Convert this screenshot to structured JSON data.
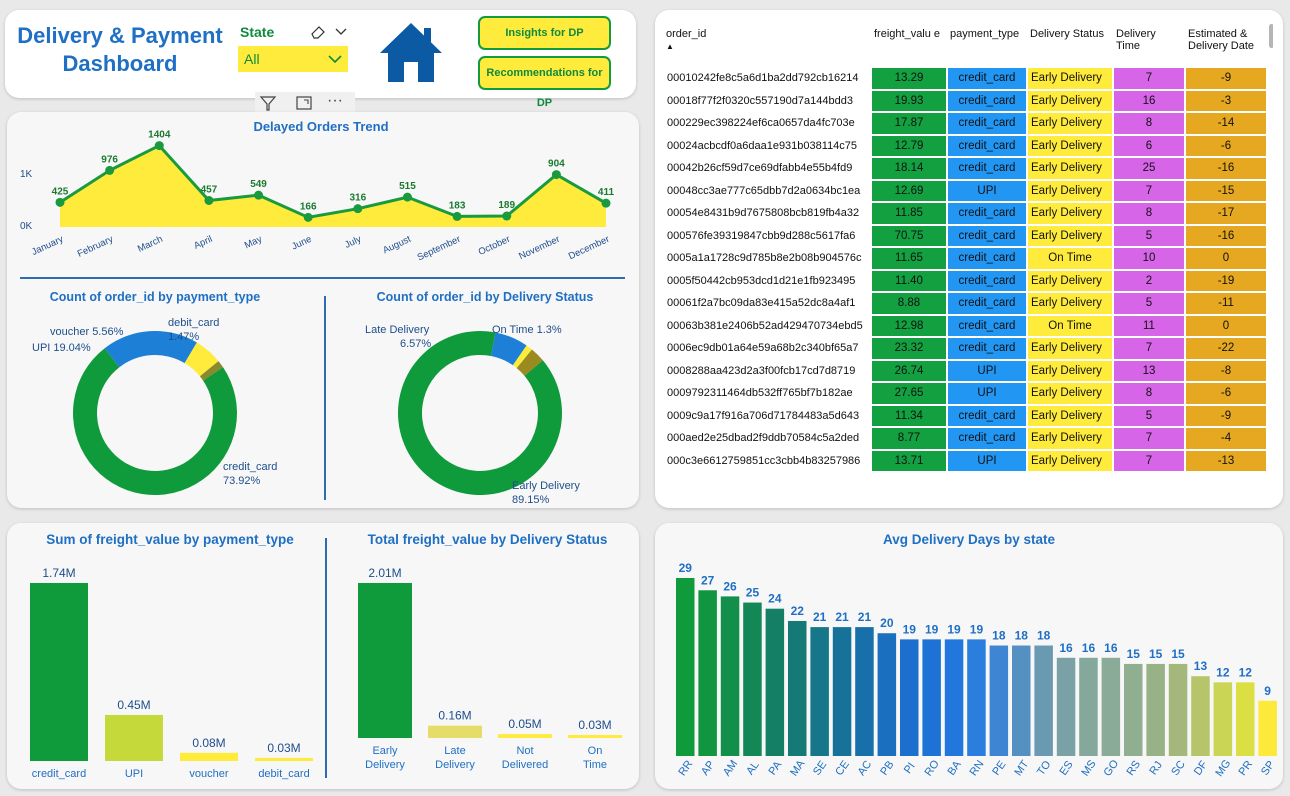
{
  "header": {
    "title_line1": "Delivery & Payment",
    "title_line2": "Dashboard",
    "state_label": "State",
    "state_value": "All",
    "btn_insights": "Insights for DP",
    "btn_recommend": "Recommendations for DP",
    "more_label": "···"
  },
  "trend": {
    "title": "Delayed Orders Trend",
    "y_ticks": [
      "1K",
      "0K"
    ]
  },
  "donut_payment": {
    "title": "Count of order_id by payment_type",
    "labels": {
      "voucher": "voucher 5.56%",
      "debit_line1": "debit_card",
      "debit_line2": "1.47%",
      "upi": "UPI 19.04%",
      "credit_line1": "credit_card",
      "credit_line2": "73.92%"
    }
  },
  "donut_status": {
    "title": "Count of order_id by Delivery Status",
    "labels": {
      "late_line1": "Late Delivery",
      "late_line2": "6.57%",
      "ontime": "On Time 1.3%",
      "early_line1": "Early Delivery",
      "early_line2": "89.15%"
    }
  },
  "table": {
    "headers": [
      "order_id",
      "freight_valu e",
      "payment_type",
      "Delivery Status",
      "Delivery Time",
      "Estimated & Delivery Date"
    ],
    "rows": [
      [
        "00010242fe8c5a6d1ba2dd792cb16214",
        "13.29",
        "credit_card",
        "Early Delivery",
        "7",
        "-9"
      ],
      [
        "00018f77f2f0320c557190d7a144bdd3",
        "19.93",
        "credit_card",
        "Early Delivery",
        "16",
        "-3"
      ],
      [
        "000229ec398224ef6ca0657da4fc703e",
        "17.87",
        "credit_card",
        "Early Delivery",
        "8",
        "-14"
      ],
      [
        "00024acbcdf0a6daa1e931b038114c75",
        "12.79",
        "credit_card",
        "Early Delivery",
        "6",
        "-6"
      ],
      [
        "00042b26cf59d7ce69dfabb4e55b4fd9",
        "18.14",
        "credit_card",
        "Early Delivery",
        "25",
        "-16"
      ],
      [
        "00048cc3ae777c65dbb7d2a0634bc1ea",
        "12.69",
        "UPI",
        "Early Delivery",
        "7",
        "-15"
      ],
      [
        "00054e8431b9d7675808bcb819fb4a32",
        "11.85",
        "credit_card",
        "Early Delivery",
        "8",
        "-17"
      ],
      [
        "000576fe39319847cbb9d288c5617fa6",
        "70.75",
        "credit_card",
        "Early Delivery",
        "5",
        "-16"
      ],
      [
        "0005a1a1728c9d785b8e2b08b904576c",
        "11.65",
        "credit_card",
        "On Time",
        "10",
        "0"
      ],
      [
        "0005f50442cb953dcd1d21e1fb923495",
        "11.40",
        "credit_card",
        "Early Delivery",
        "2",
        "-19"
      ],
      [
        "00061f2a7bc09da83e415a52dc8a4af1",
        "8.88",
        "credit_card",
        "Early Delivery",
        "5",
        "-11"
      ],
      [
        "00063b381e2406b52ad429470734ebd5",
        "12.98",
        "credit_card",
        "On Time",
        "11",
        "0"
      ],
      [
        "0006ec9db01a64e59a68b2c340bf65a7",
        "23.32",
        "credit_card",
        "Early Delivery",
        "7",
        "-22"
      ],
      [
        "0008288aa423d2a3f00fcb17cd7d8719",
        "26.74",
        "UPI",
        "Early Delivery",
        "13",
        "-8"
      ],
      [
        "0009792311464db532ff765bf7b182ae",
        "27.65",
        "UPI",
        "Early Delivery",
        "8",
        "-6"
      ],
      [
        "0009c9a17f916a706d71784483a5d643",
        "11.34",
        "credit_card",
        "Early Delivery",
        "5",
        "-9"
      ],
      [
        "000aed2e25dbad2f9ddb70584c5a2ded",
        "8.77",
        "credit_card",
        "Early Delivery",
        "7",
        "-4"
      ],
      [
        "000c3e6612759851cc3cbb4b83257986",
        "13.71",
        "UPI",
        "Early Delivery",
        "7",
        "-13"
      ]
    ]
  },
  "colors": {
    "green": "#0f9a3c",
    "blue": "#1e7fd6",
    "yellow": "#ffeb3b",
    "title_blue": "#1f6fc4",
    "lime": "#c6d93b",
    "magenta": "#d665e8",
    "orange": "#e6a820"
  },
  "chart_data": [
    {
      "type": "area",
      "title": "Delayed Orders Trend",
      "categories": [
        "January",
        "February",
        "March",
        "April",
        "May",
        "June",
        "July",
        "August",
        "September",
        "October",
        "November",
        "December"
      ],
      "values": [
        425,
        976,
        1404,
        457,
        549,
        166,
        316,
        515,
        183,
        189,
        904,
        411
      ],
      "value_labels": [
        "425",
        "976",
        "1404",
        "457",
        "549",
        "166",
        "316",
        "515",
        "183",
        "189",
        "904",
        "411"
      ],
      "ylim": [
        0,
        1500
      ]
    },
    {
      "type": "pie",
      "title": "Count of order_id by payment_type",
      "categories": [
        "credit_card",
        "UPI",
        "voucher",
        "debit_card"
      ],
      "values": [
        73.92,
        19.04,
        5.56,
        1.47
      ]
    },
    {
      "type": "pie",
      "title": "Count of order_id by Delivery Status",
      "categories": [
        "Early Delivery",
        "Late Delivery",
        "On Time",
        "Not Delivered"
      ],
      "values": [
        89.15,
        6.57,
        1.3,
        2.98
      ]
    },
    {
      "type": "bar",
      "title": "Sum of freight_value by payment_type",
      "categories": [
        "credit_card",
        "UPI",
        "voucher",
        "debit_card"
      ],
      "values": [
        1.74,
        0.45,
        0.08,
        0.03
      ],
      "value_labels": [
        "1.74M",
        "0.45M",
        "0.08M",
        "0.03M"
      ]
    },
    {
      "type": "bar",
      "title": "Total freight_value by Delivery Status",
      "categories": [
        "Early Delivery",
        "Late Delivery",
        "Not Delivered",
        "On Time"
      ],
      "values": [
        2.01,
        0.16,
        0.05,
        0.03
      ],
      "value_labels": [
        "2.01M",
        "0.16M",
        "0.05M",
        "0.03M"
      ]
    },
    {
      "type": "bar",
      "title": "Avg Delivery Days by state",
      "categories": [
        "RR",
        "AP",
        "AM",
        "AL",
        "PA",
        "MA",
        "SE",
        "CE",
        "AC",
        "PB",
        "PI",
        "RO",
        "BA",
        "RN",
        "PE",
        "MT",
        "TO",
        "ES",
        "MS",
        "GO",
        "RS",
        "RJ",
        "SC",
        "DF",
        "MG",
        "PR",
        "SP"
      ],
      "values": [
        29,
        27,
        26,
        25,
        24,
        22,
        21,
        21,
        21,
        20,
        19,
        19,
        19,
        19,
        18,
        18,
        18,
        16,
        16,
        16,
        15,
        15,
        15,
        13,
        12,
        12,
        9
      ]
    }
  ]
}
